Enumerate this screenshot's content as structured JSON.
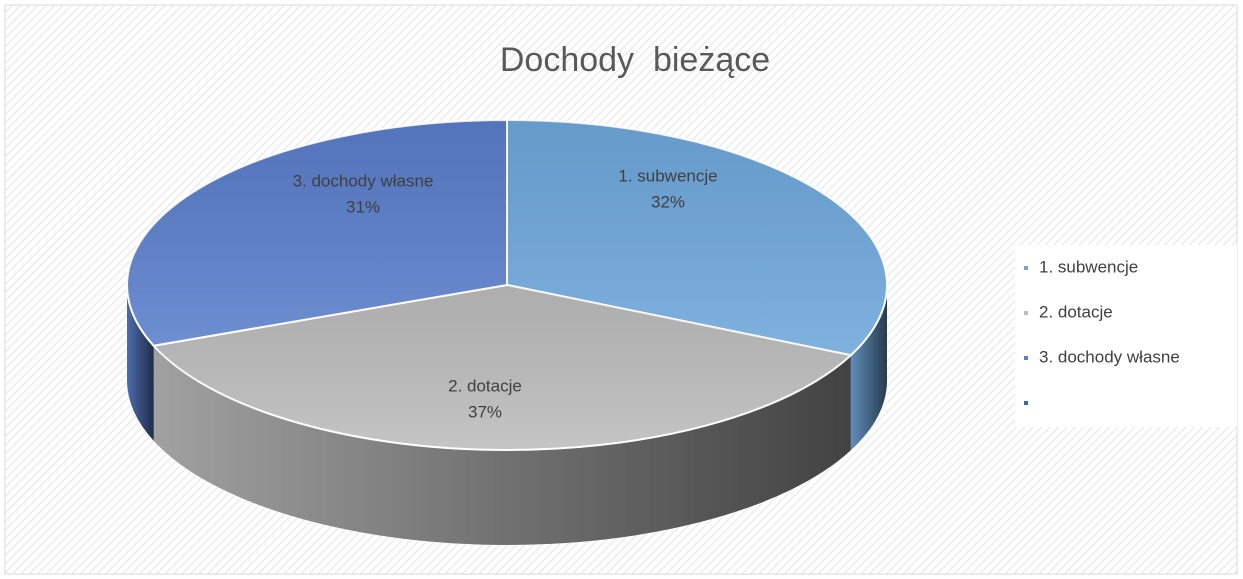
{
  "chart_data": {
    "type": "pie3d",
    "title": "Dochody  bieżące",
    "categories": [
      "1. subwencje",
      "2. dotacje",
      "3. dochody własne",
      null
    ],
    "values": [
      32,
      37,
      31,
      null
    ],
    "value_labels": [
      "32%",
      "37%",
      "31%",
      null
    ],
    "colors": [
      "#6fa8dc",
      "#bdbdbd",
      "#5b7fcc",
      "#2e6da4"
    ],
    "legend": "right"
  }
}
